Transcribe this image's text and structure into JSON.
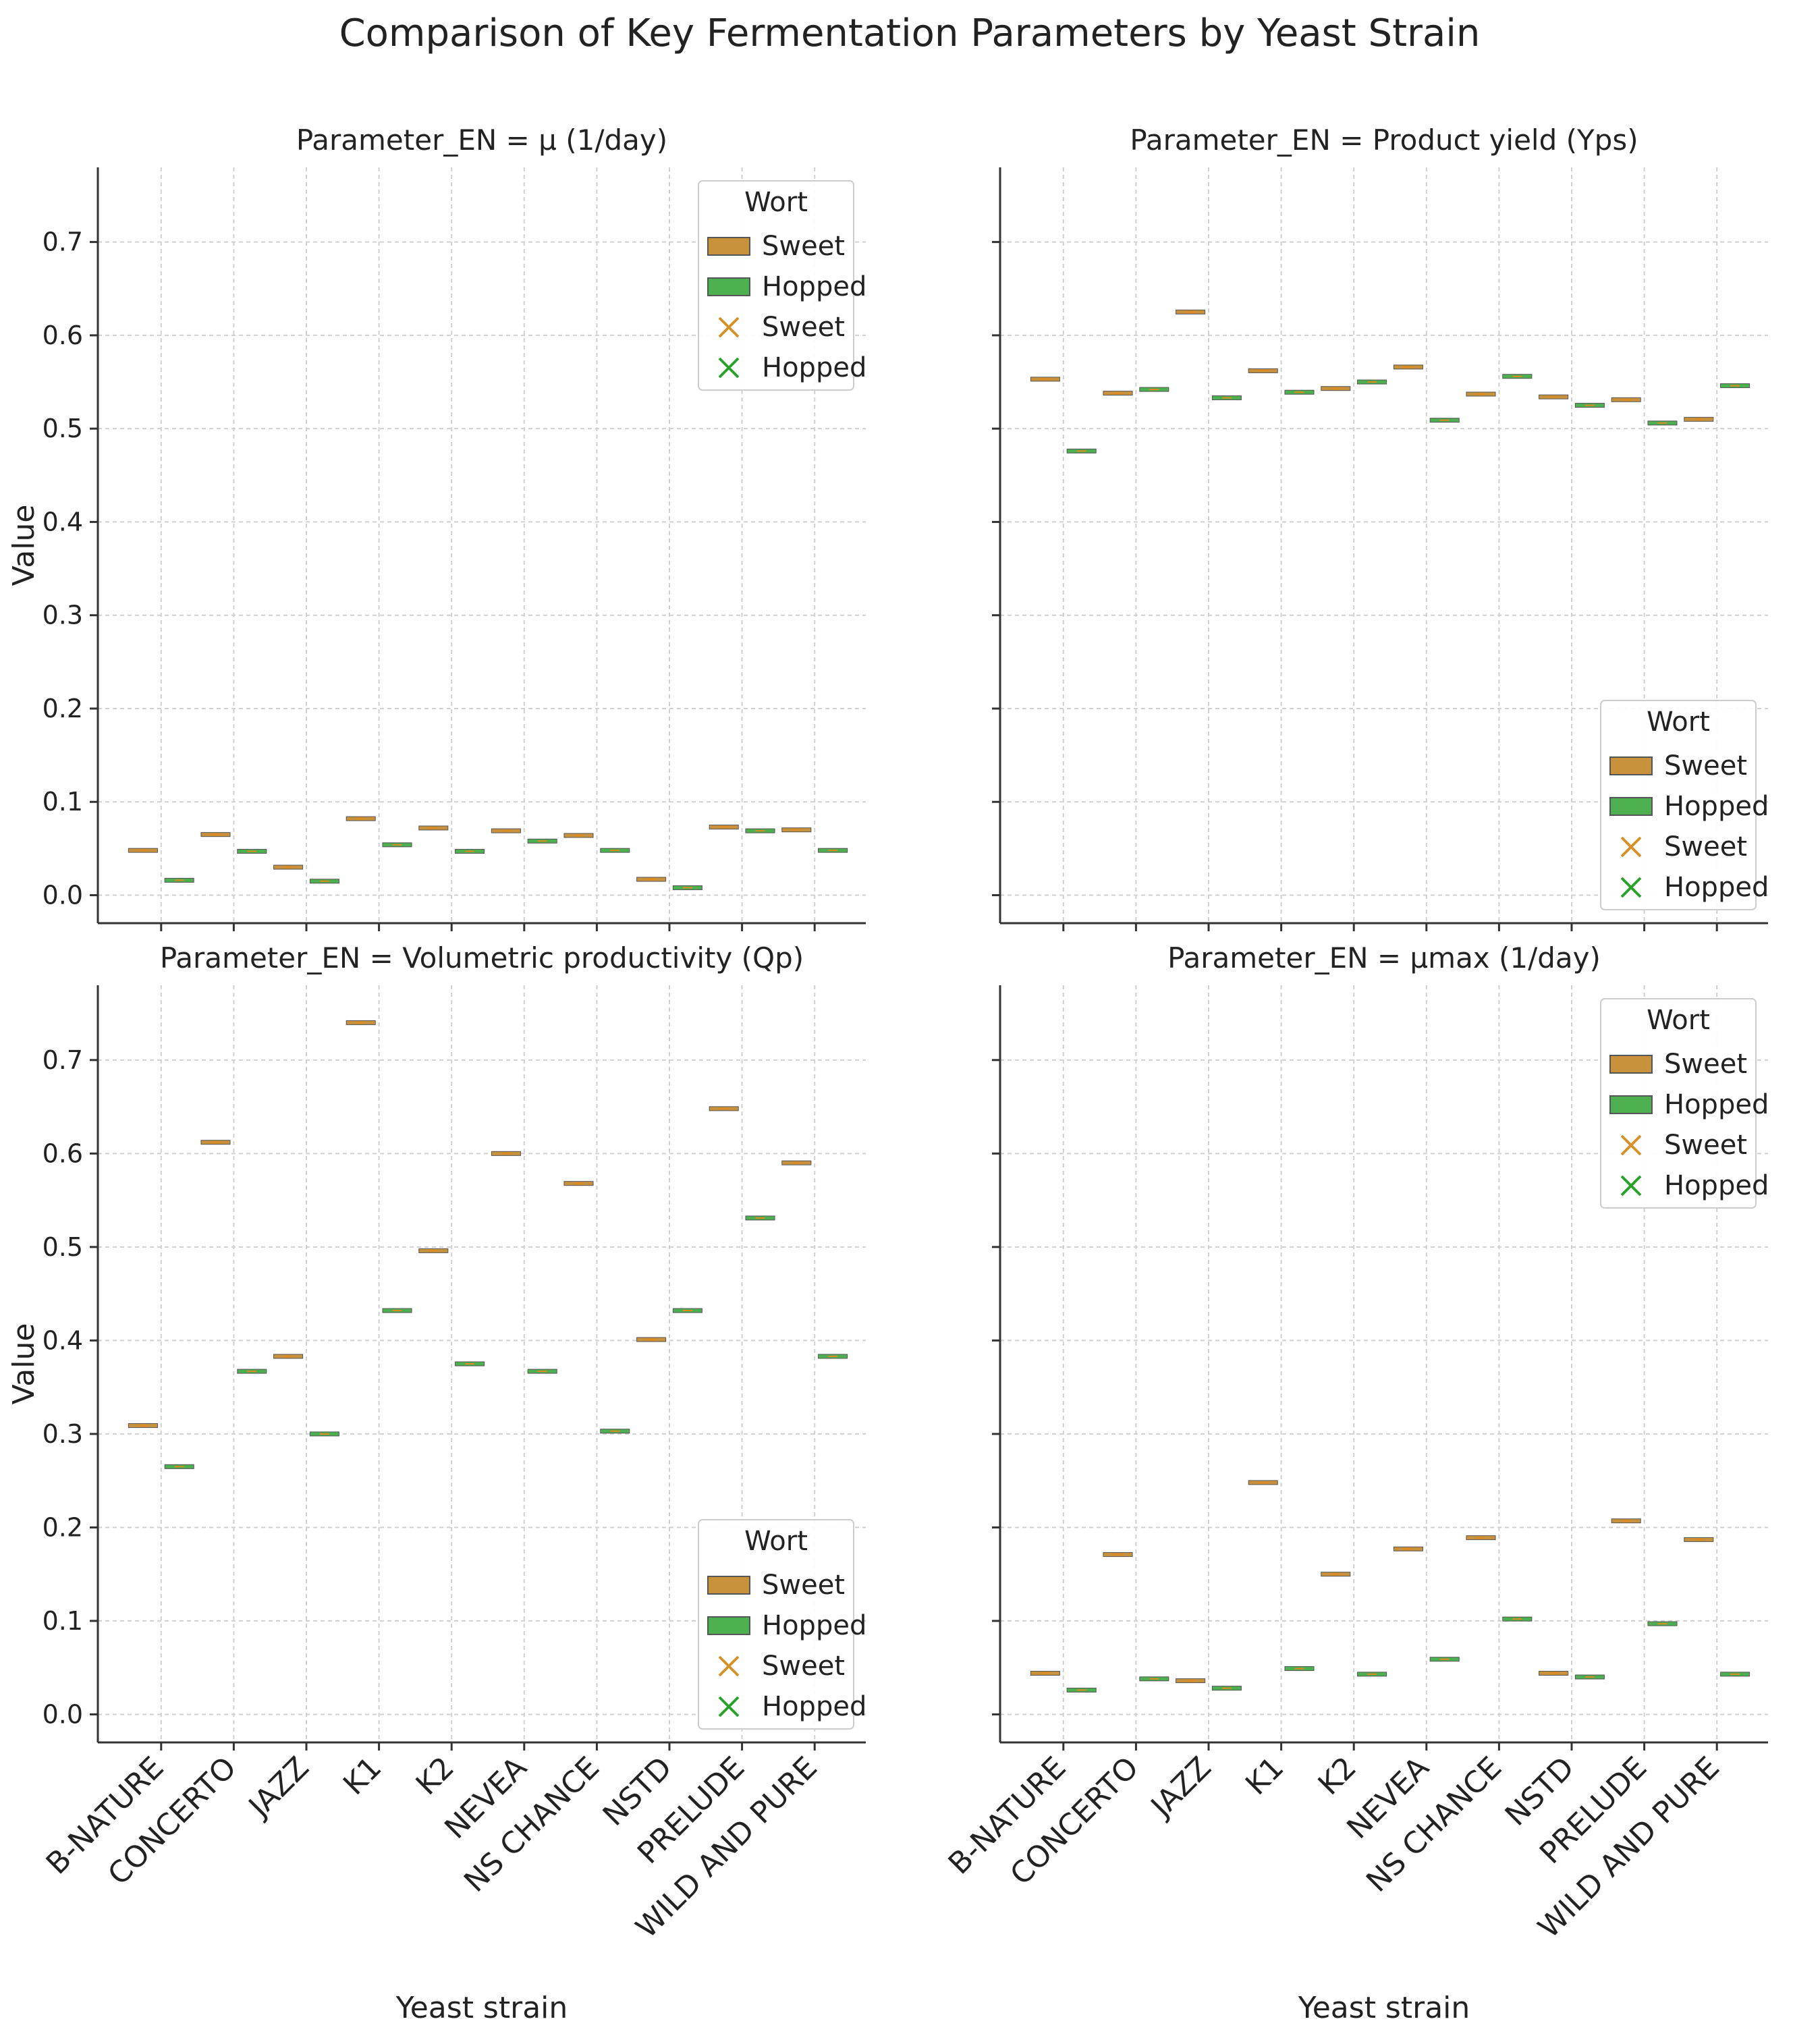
{
  "chart_data": {
    "title": "Comparison of Key Fermentation Parameters by Yeast Strain",
    "type": "box",
    "categories": [
      "B-NATURE",
      "CONCERTO",
      "JAZZ",
      "K1",
      "K2",
      "NEVEA",
      "NS CHANCE",
      "NSTD",
      "PRELUDE",
      "WILD AND PURE"
    ],
    "xlabel": "Yeast strain",
    "ylabel": "Value",
    "ylim": [
      -0.03,
      0.78
    ],
    "yticks": [
      "0.0",
      "0.1",
      "0.2",
      "0.3",
      "0.4",
      "0.5",
      "0.6",
      "0.7"
    ],
    "grid": true,
    "legend": {
      "title": "Wort",
      "items": [
        {
          "label": "Sweet",
          "marker": "box",
          "color": "#c8913b"
        },
        {
          "label": "Hopped",
          "marker": "box",
          "color": "#4caf50"
        },
        {
          "label": "Sweet",
          "marker": "x",
          "color": "#d4932a"
        },
        {
          "label": "Hopped",
          "marker": "x",
          "color": "#2ca02c"
        }
      ]
    },
    "colors": {
      "sweet": "#c8913b",
      "hopped": "#4caf50",
      "axis": "#333333",
      "grid": "#d0d0d0"
    },
    "panels": [
      {
        "title": "Parameter_EN = μ (1/day)",
        "legend_loc": "upper right",
        "series": [
          {
            "name": "Sweet",
            "values": [
              0.048,
              0.065,
              0.03,
              0.082,
              0.072,
              0.069,
              0.064,
              0.017,
              0.073,
              0.07
            ]
          },
          {
            "name": "Hopped",
            "values": [
              0.016,
              0.047,
              0.015,
              0.054,
              0.047,
              0.058,
              0.048,
              0.008,
              0.069,
              0.048
            ]
          }
        ]
      },
      {
        "title": "Parameter_EN = Product yield (Yps)",
        "legend_loc": "lower right",
        "series": [
          {
            "name": "Sweet",
            "values": [
              0.553,
              0.538,
              0.625,
              0.562,
              0.543,
              0.566,
              0.537,
              0.534,
              0.531,
              0.51
            ]
          },
          {
            "name": "Hopped",
            "values": [
              0.476,
              0.542,
              0.533,
              0.539,
              0.55,
              0.509,
              0.556,
              0.525,
              0.506,
              0.546
            ]
          }
        ]
      },
      {
        "title": "Parameter_EN = Volumetric productivity (Qp)",
        "legend_loc": "lower right",
        "series": [
          {
            "name": "Sweet",
            "values": [
              0.309,
              0.612,
              0.383,
              0.74,
              0.496,
              0.6,
              0.568,
              0.401,
              0.648,
              0.59
            ]
          },
          {
            "name": "Hopped",
            "values": [
              0.265,
              0.367,
              0.3,
              0.432,
              0.375,
              0.367,
              0.303,
              0.432,
              0.531,
              0.383
            ]
          }
        ]
      },
      {
        "title": "Parameter_EN = μmax (1/day)",
        "legend_loc": "upper right",
        "series": [
          {
            "name": "Sweet",
            "values": [
              0.044,
              0.171,
              0.036,
              0.248,
              0.15,
              0.177,
              0.189,
              0.044,
              0.207,
              0.187
            ]
          },
          {
            "name": "Hopped",
            "values": [
              0.026,
              0.038,
              0.028,
              0.049,
              0.043,
              0.059,
              0.102,
              0.04,
              0.097,
              0.043
            ]
          }
        ]
      }
    ]
  }
}
